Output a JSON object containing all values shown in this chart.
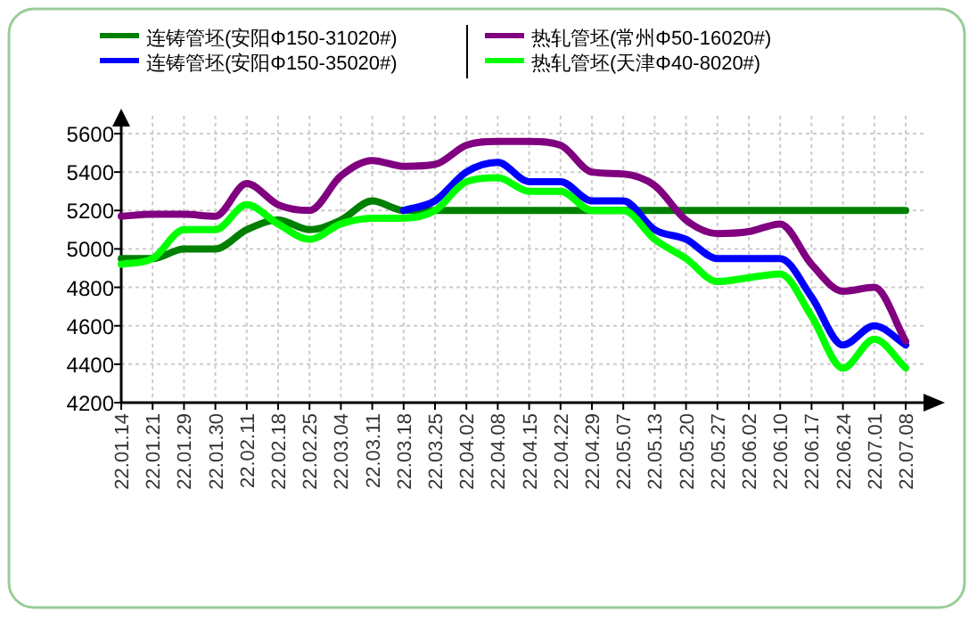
{
  "chart_data": {
    "type": "line",
    "categories": [
      "22.01.14",
      "22.01.21",
      "22.01.29",
      "22.01.30",
      "22.02.11",
      "22.02.18",
      "22.02.25",
      "22.03.04",
      "22.03.11",
      "22.03.18",
      "22.03.25",
      "22.04.02",
      "22.04.08",
      "22.04.15",
      "22.04.22",
      "22.04.29",
      "22.05.07",
      "22.05.13",
      "22.05.20",
      "22.05.27",
      "22.06.02",
      "22.06.10",
      "22.06.17",
      "22.06.24",
      "22.07.01",
      "22.07.08"
    ],
    "series": [
      {
        "name": "连铸管坯(安阳Φ150-31020#)",
        "color": "#008000",
        "values": [
          4950,
          4950,
          5000,
          5000,
          5100,
          5150,
          5100,
          5150,
          5250,
          5200,
          5200,
          5200,
          5200,
          5200,
          5200,
          5200,
          5200,
          5200,
          5200,
          5200,
          5200,
          5200,
          5200,
          5200,
          5200,
          5200
        ]
      },
      {
        "name": "连铸管坯(安阳Φ150-35020#)",
        "color": "#0000ff",
        "values": [
          null,
          null,
          null,
          null,
          null,
          null,
          null,
          null,
          null,
          5200,
          5250,
          5400,
          5450,
          5350,
          5350,
          5250,
          5250,
          5100,
          5050,
          4950,
          4950,
          4950,
          4750,
          4500,
          4600,
          4500
        ]
      },
      {
        "name": "热轧管坯(常州Φ50-16020#)",
        "color": "#800080",
        "values": [
          5170,
          5180,
          5180,
          5170,
          5340,
          5230,
          5200,
          5380,
          5460,
          5430,
          5440,
          5540,
          5560,
          5560,
          5540,
          5400,
          5390,
          5330,
          5150,
          5080,
          5090,
          5130,
          4920,
          4780,
          4800,
          4520
        ]
      },
      {
        "name": "热轧管坯(天津Φ40-8020#)",
        "color": "#00ff00",
        "values": [
          4920,
          4950,
          5100,
          5100,
          5230,
          5130,
          5050,
          5130,
          5160,
          5160,
          5200,
          5350,
          5370,
          5300,
          5300,
          5200,
          5200,
          5050,
          4950,
          4830,
          4850,
          4870,
          4650,
          4380,
          4530,
          4380
        ]
      }
    ],
    "ylim": [
      4200,
      5600
    ],
    "yticks": [
      4200,
      4400,
      4600,
      4800,
      5000,
      5200,
      5400,
      5600
    ],
    "grid": true,
    "legend": "top",
    "marker": "none",
    "line_style": "solid"
  }
}
